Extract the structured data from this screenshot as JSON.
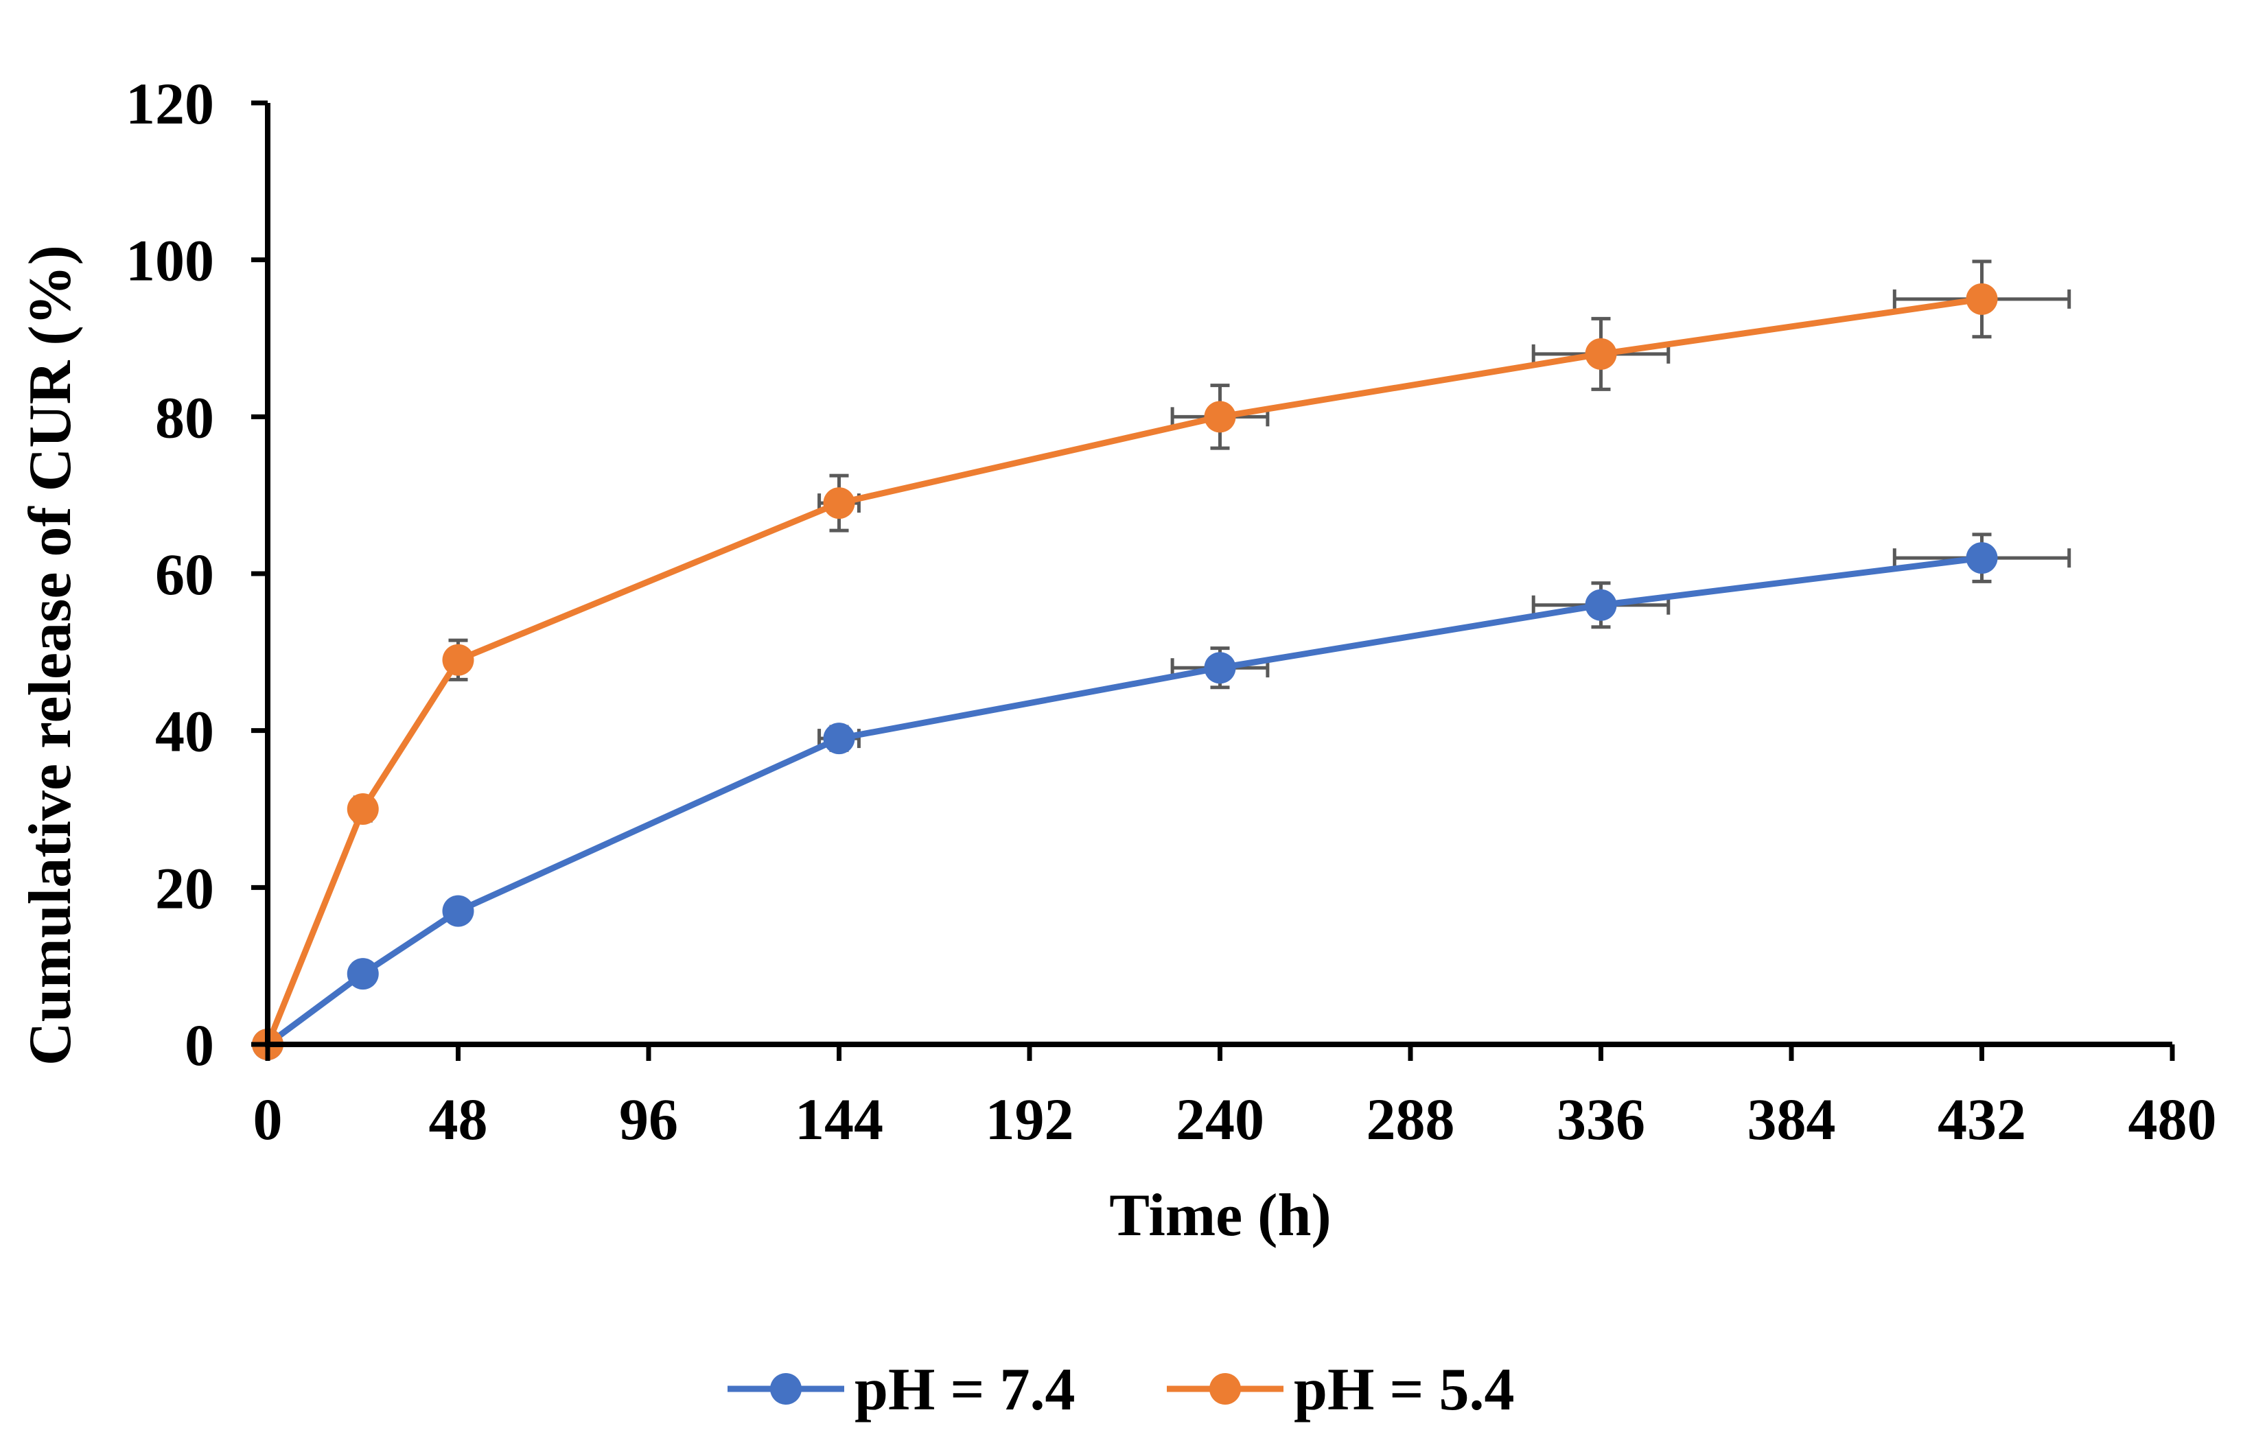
{
  "chart_data": {
    "type": "line",
    "title": "",
    "xlabel": "Time (h)",
    "ylabel": "Cumulative release of CUR (%)",
    "xlim": [
      0,
      480
    ],
    "ylim": [
      0,
      120
    ],
    "x_ticks": [
      0,
      48,
      96,
      144,
      192,
      240,
      288,
      336,
      384,
      432,
      480
    ],
    "y_ticks": [
      0,
      20,
      40,
      60,
      80,
      100,
      120
    ],
    "x_tick_labels": [
      "0",
      "48",
      "96",
      "144",
      "192",
      "240",
      "288",
      "336",
      "384",
      "432",
      "480"
    ],
    "y_tick_labels": [
      "0",
      "20",
      "40",
      "60",
      "80",
      "100",
      "120"
    ],
    "grid": false,
    "legend_position": "bottom-center",
    "series": [
      {
        "name": "pH = 7.4",
        "color": "#4472C4",
        "x": [
          0,
          24,
          48,
          144,
          240,
          336,
          432
        ],
        "values": [
          0,
          9,
          17,
          39,
          48,
          56,
          62
        ],
        "y_err": [
          0,
          0.5,
          0.8,
          1.5,
          2.5,
          2.8,
          3.0
        ],
        "x_err": [
          0,
          0,
          0,
          5,
          12,
          17,
          22
        ]
      },
      {
        "name": "pH = 5.4",
        "color": "#ED7D31",
        "x": [
          0,
          24,
          48,
          144,
          240,
          336,
          432
        ],
        "values": [
          0,
          30,
          49,
          69,
          80,
          88,
          95
        ],
        "y_err": [
          0,
          1.5,
          2.5,
          3.5,
          4.0,
          4.5,
          4.8
        ],
        "x_err": [
          0,
          0,
          0,
          5,
          12,
          17,
          22
        ]
      }
    ]
  },
  "error_bar_color": "#595959",
  "axis_color": "#000000"
}
